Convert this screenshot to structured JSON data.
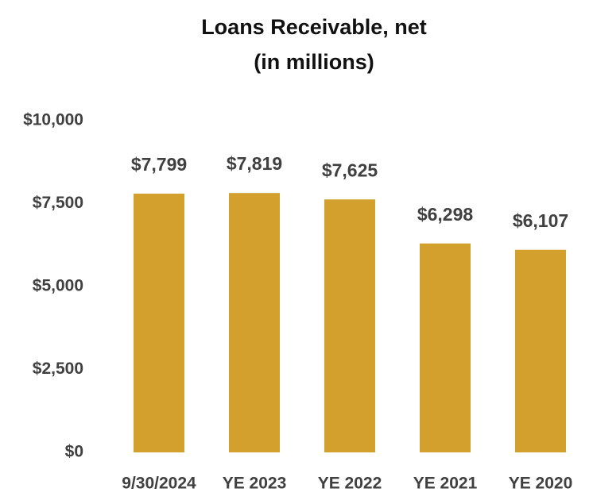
{
  "chart_data": {
    "type": "bar",
    "title": "Loans Receivable, net",
    "subtitle": "(in millions)",
    "categories": [
      "9/30/2024",
      "YE 2023",
      "YE 2022",
      "YE 2021",
      "YE 2020"
    ],
    "values": [
      7799,
      7819,
      7625,
      6298,
      6107
    ],
    "value_labels": [
      "$7,799",
      "$7,819",
      "$7,625",
      "$6,298",
      "$6,107"
    ],
    "color": "#d3a02e",
    "ylim": [
      0,
      10000
    ],
    "yticks": [
      {
        "value": 0,
        "label": "$0"
      },
      {
        "value": 2500,
        "label": "$2,500"
      },
      {
        "value": 5000,
        "label": "$5,000"
      },
      {
        "value": 7500,
        "label": "$7,500"
      },
      {
        "value": 10000,
        "label": "$10,000"
      }
    ],
    "grid": false
  }
}
